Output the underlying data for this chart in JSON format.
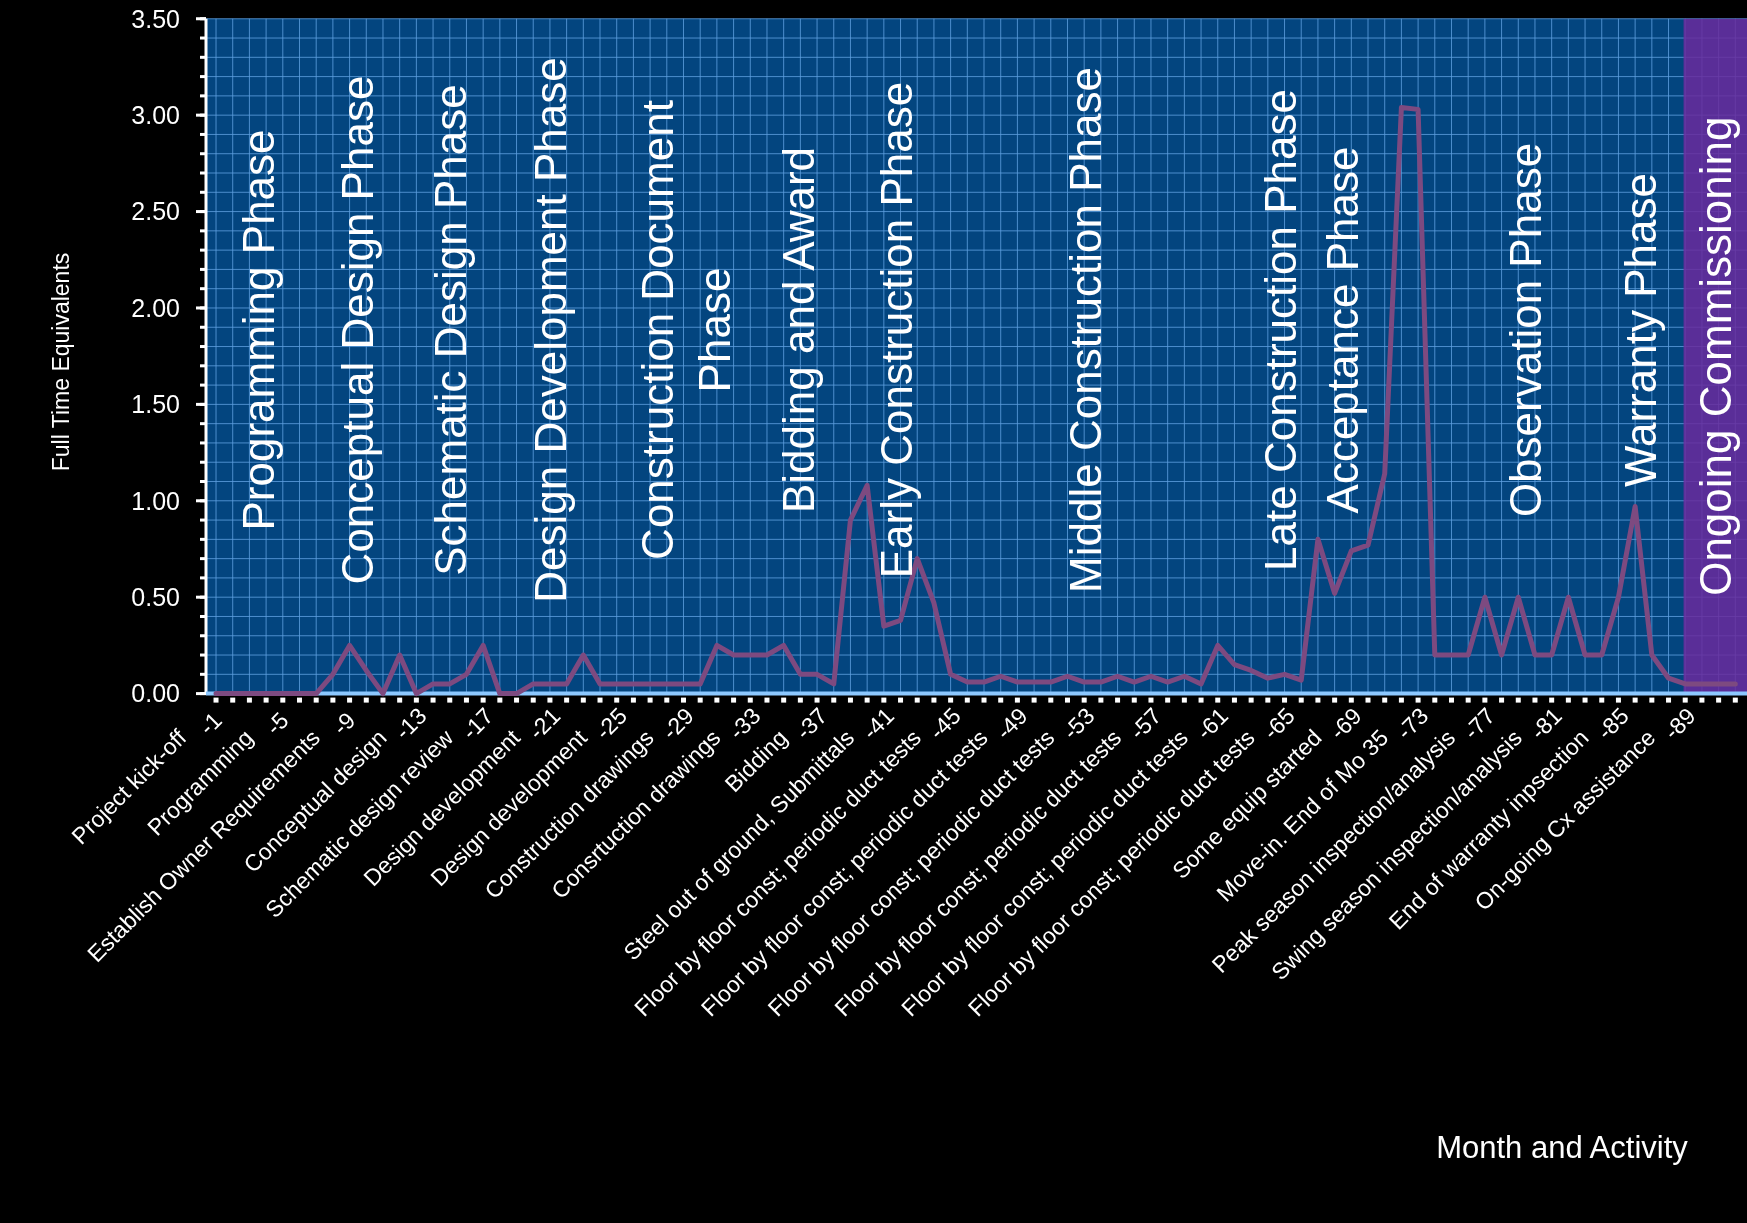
{
  "chart_data": {
    "type": "line",
    "ylabel": "Full Time Equivalents",
    "xlabel": "Month and Activity",
    "x": [
      -1,
      -2,
      -3,
      -4,
      -5,
      -6,
      -7,
      -8,
      -9,
      -10,
      -11,
      -12,
      -13,
      -14,
      -15,
      -16,
      -17,
      -18,
      -19,
      -20,
      -21,
      -22,
      -23,
      -24,
      -25,
      -26,
      -27,
      -28,
      -29,
      -30,
      -31,
      -32,
      -33,
      -34,
      -35,
      -36,
      -37,
      -38,
      -39,
      -40,
      -41,
      -42,
      -43,
      -44,
      -45,
      -46,
      -47,
      -48,
      -49,
      -50,
      -51,
      -52,
      -53,
      -54,
      -55,
      -56,
      -57,
      -58,
      -59,
      -60,
      -61,
      -62,
      -63,
      -64,
      -65,
      -66,
      -67,
      -68,
      -69,
      -70,
      -71,
      -72,
      -73,
      -74,
      -75,
      -76,
      -77,
      -78,
      -79,
      -80,
      -81,
      -82,
      -83,
      -84,
      -85,
      -86,
      -87,
      -88,
      -89,
      -90,
      -91,
      -92
    ],
    "series": [
      {
        "color": "#7d4a80",
        "values": [
          0,
          0,
          0,
          0,
          0,
          0,
          0,
          0.1,
          0.25,
          0.12,
          0,
          0.2,
          0,
          0.05,
          0.05,
          0.1,
          0.25,
          0,
          0,
          0.05,
          0.05,
          0.05,
          0.2,
          0.05,
          0.05,
          0.05,
          0.05,
          0.05,
          0.05,
          0.05,
          0.25,
          0.2,
          0.2,
          0.2,
          0.25,
          0.1,
          0.1,
          0.05,
          0.9,
          1.08,
          0.35,
          0.38,
          0.7,
          0.47,
          0.1,
          0.06,
          0.06,
          0.09,
          0.06,
          0.06,
          0.06,
          0.09,
          0.06,
          0.06,
          0.09,
          0.06,
          0.09,
          0.06,
          0.09,
          0.05,
          0.25,
          0.15,
          0.12,
          0.08,
          0.1,
          0.07,
          0.8,
          0.52,
          0.74,
          0.77,
          1.14,
          3.04,
          3.03,
          0.2,
          0.2,
          0.2,
          0.5,
          0.2,
          0.5,
          0.2,
          0.2,
          0.5,
          0.2,
          0.2,
          0.5,
          0.97,
          0.2,
          0.08,
          0.05,
          0.05,
          0.05,
          0.05
        ]
      }
    ],
    "xlim": [
      -0.4,
      -92.7
    ],
    "ylim": [
      0,
      3.5
    ],
    "xticks": [
      {
        "value": -1,
        "label": "-1\nProject kick-off"
      },
      {
        "value": -5,
        "label": "-5\nProgramming"
      },
      {
        "value": -9,
        "label": "-9\nEstablish Owner Requirements"
      },
      {
        "value": -13,
        "label": "-13\nConceptual design"
      },
      {
        "value": -17,
        "label": "-17\nSchematic design review"
      },
      {
        "value": -21,
        "label": "-21\nDesign development"
      },
      {
        "value": -25,
        "label": "-25\nDesign development"
      },
      {
        "value": -29,
        "label": "-29\nConstruction drawings"
      },
      {
        "value": -33,
        "label": "-33\nConsrtuction drawings"
      },
      {
        "value": -37,
        "label": "-37\nBidding"
      },
      {
        "value": -41,
        "label": "-41\nSteel out of ground, Submittals"
      },
      {
        "value": -45,
        "label": "-45\nFloor by floor const; periodic duct tests"
      },
      {
        "value": -49,
        "label": "-49\nFloor by floor const; periodic duct tests"
      },
      {
        "value": -53,
        "label": "-53\nFloor by floor const; periodic duct tests"
      },
      {
        "value": -57,
        "label": "-57\nFloor by floor const; periodic duct tests"
      },
      {
        "value": -61,
        "label": "-61\nFloor by floor const; periodic duct tests"
      },
      {
        "value": -65,
        "label": "-65\nFloor by floor const; periodic duct tests"
      },
      {
        "value": -69,
        "label": "-69\nSome equip started"
      },
      {
        "value": -73,
        "label": "-73\nMove-in. End of Mo 35"
      },
      {
        "value": -77,
        "label": "-77\nPeak season inspection/analysis"
      },
      {
        "value": -81,
        "label": "-81\nSwing season inspection/analysis"
      },
      {
        "value": -85,
        "label": "-85\nEnd of warranty inpsection"
      },
      {
        "value": -89,
        "label": "-89\nOn-going Cx assistance"
      }
    ],
    "yticks": [
      {
        "value": 0,
        "label": "0.00"
      },
      {
        "value": 0.5,
        "label": "0.50"
      },
      {
        "value": 1,
        "label": "1.00"
      },
      {
        "value": 1.5,
        "label": "1.50"
      },
      {
        "value": 2,
        "label": "2.00"
      },
      {
        "value": 2.5,
        "label": "2.50"
      },
      {
        "value": 3,
        "label": "3.00"
      },
      {
        "value": 3.5,
        "label": "3.50"
      }
    ],
    "grid": true,
    "bands": [
      {
        "axis": "x",
        "from": -88.9,
        "to": -92.7,
        "label": "Ongoing Commissioning",
        "color": "#6a2a9c"
      }
    ],
    "annotations": [
      "Programming Phase",
      "Conceptual Design Phase",
      "Schematic Design Phase",
      "Design Development Phase",
      "Construction Document\nPhase",
      "Bidding and Award",
      "Early Construction Phase",
      "Middle Construction Phase",
      "Late Construction Phase",
      "Acceptance Phase",
      "Observation Phase",
      "Warranty Phase"
    ]
  }
}
